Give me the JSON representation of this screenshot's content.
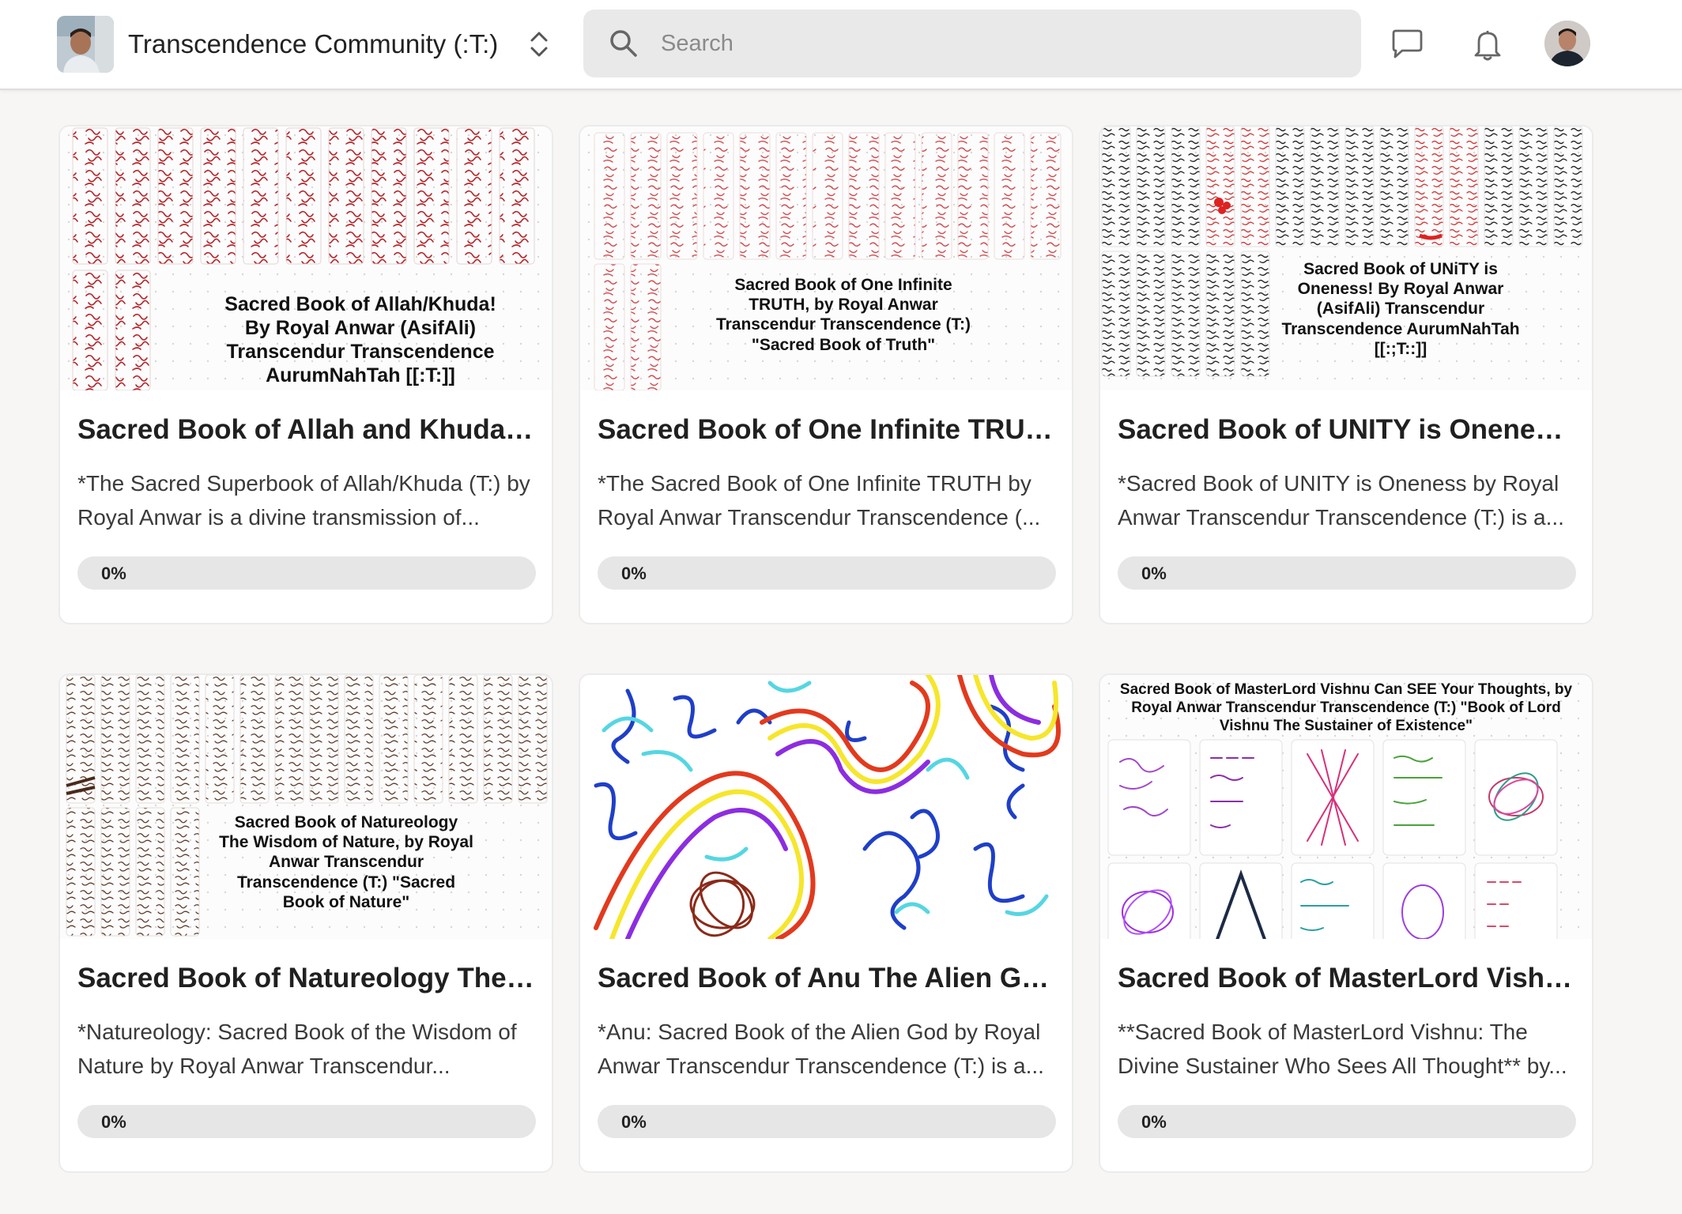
{
  "header": {
    "community_name": "Transcendence Community (:T:)",
    "search_placeholder": "Search",
    "icons": [
      "chevron-updown-icon",
      "search-icon",
      "chat-icon",
      "bell-icon"
    ]
  },
  "cards": [
    {
      "cover_caption": "Sacred Book of Allah/Khuda! By Royal Anwar (AsifAli) Transcendur Transcendence AurumNahTah [[:T:]]",
      "title": "Sacred Book of Allah and Khuda دا...",
      "description": "*The Sacred Superbook of Allah/Khuda (T:) by Royal Anwar is a divine transmission of...",
      "progress_label": "0%",
      "progress": 0
    },
    {
      "cover_caption": "Sacred Book of One Infinite TRUTH, by Royal Anwar Transcendur Transcendence (T:) \"Sacred Book of Truth\"",
      "title": "Sacred Book of One Infinite TRUT...",
      "description": "*The Sacred Book of One Infinite TRUTH by Royal Anwar Transcendur Transcendence (...",
      "progress_label": "0%",
      "progress": 0
    },
    {
      "cover_caption": "Sacred Book of UNiTY is Oneness! By Royal Anwar (AsifAli) Transcendur Transcendence AurumNahTah [[:;T::]]",
      "title": "Sacred Book of UNITY is Oneness...",
      "description": "*Sacred Book of UNITY is Oneness by Royal Anwar Transcendur Transcendence (T:) is a...",
      "progress_label": "0%",
      "progress": 0
    },
    {
      "cover_caption": "Sacred Book of Natureology The Wisdom of Nature, by Royal Anwar Transcendur Transcendence (T:) \"Sacred Book of Nature\"",
      "title": "Sacred Book of Natureology The ...",
      "description": "*Natureology: Sacred Book of the Wisdom of Nature by Royal Anwar Transcendur...",
      "progress_label": "0%",
      "progress": 0
    },
    {
      "cover_caption": "",
      "title": "Sacred Book of Anu The Alien Go...",
      "description": "*Anu: Sacred Book of the Alien God by Royal Anwar Transcendur Transcendence (T:) is a...",
      "progress_label": "0%",
      "progress": 0
    },
    {
      "cover_caption": "Sacred Book of MasterLord Vishnu Can SEE Your Thoughts, by Royal Anwar Transcendur Transcendence (T:) \"Book of Lord Vishnu The Sustainer of Existence\"",
      "title": "Sacred Book of MasterLord Vishn...",
      "description": "**Sacred Book of MasterLord Vishnu: The Divine Sustainer Who Sees All Thought** by...",
      "progress_label": "0%",
      "progress": 0
    }
  ],
  "colors": {
    "page_bg": "#f7f6f5",
    "progress_track": "#e6e6e6",
    "cover1_ink": "#b3262b",
    "cover2_ink": "#d0494d",
    "cover3_ink": "#222222",
    "cover4_ink": "#5a3a2a"
  }
}
